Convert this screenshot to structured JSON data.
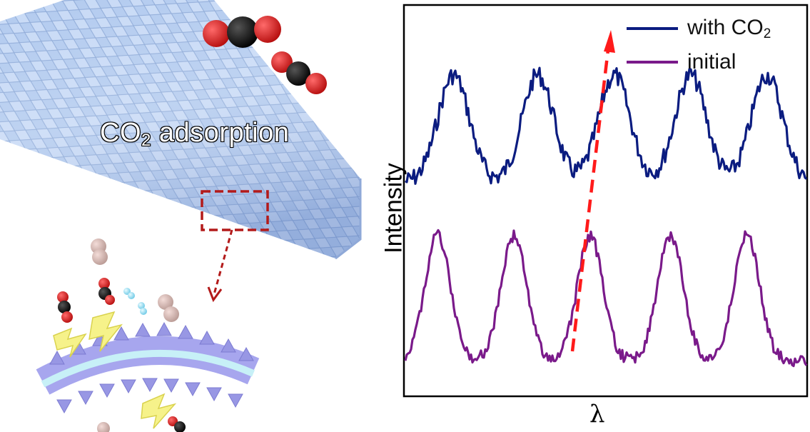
{
  "illustration": {
    "label_main": "CO",
    "label_sub": "2",
    "label_rest": " adsorption"
  },
  "chart_data": {
    "type": "line",
    "xlabel": "λ",
    "ylabel": "Intensity",
    "grid": false,
    "legend_position": "top-right",
    "series": [
      {
        "name": "with CO2",
        "color": "#0b1c80",
        "peaks_x": [
          0.12,
          0.33,
          0.52,
          0.71,
          0.9
        ]
      },
      {
        "name": "initial",
        "color": "#7a1a8a",
        "peaks_x": [
          0.08,
          0.27,
          0.46,
          0.66,
          0.85
        ]
      }
    ],
    "annotation": "red dashed arrow indicating peak shift"
  },
  "legend": {
    "series1_main": "with CO",
    "series1_sub": "2",
    "series2": "initial"
  },
  "colors": {
    "series1": "#0b1c80",
    "series2": "#7a1a8a",
    "arrow": "#ff1a1a",
    "tube": "#a9c3ec"
  }
}
